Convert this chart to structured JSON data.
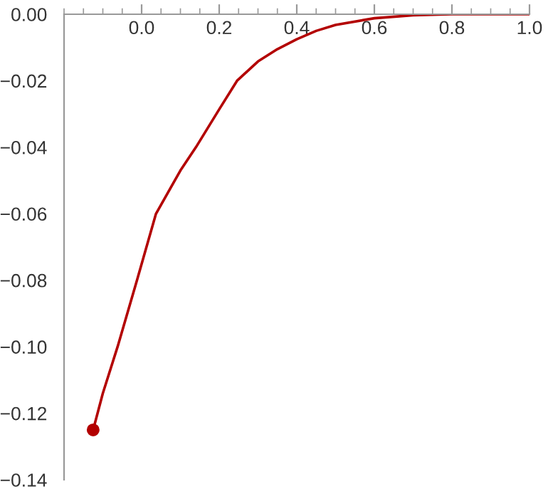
{
  "chart_data": {
    "type": "line",
    "series": [
      {
        "color": "#b30000",
        "x": [
          -0.125,
          -0.1,
          -0.062,
          -0.012,
          0.037,
          0.1,
          0.14,
          0.2,
          0.246,
          0.3,
          0.35,
          0.4,
          0.45,
          0.5,
          0.6,
          0.7,
          0.8,
          0.9,
          1.0
        ],
        "values": [
          -0.125,
          -0.114,
          -0.1,
          -0.08,
          -0.06,
          -0.047,
          -0.04,
          -0.0286,
          -0.02,
          -0.0142,
          -0.0105,
          -0.0075,
          -0.005,
          -0.0032,
          -0.0012,
          -0.0003,
          0,
          0,
          0
        ]
      },
      {
        "type": "scatter",
        "color": "#b30000",
        "marker": "circle",
        "x": [
          -0.125
        ],
        "values": [
          -0.125
        ]
      }
    ],
    "xlim": [
      -0.2,
      1.0
    ],
    "ylim": [
      -0.14,
      0
    ],
    "xticks": [
      {
        "value": 0,
        "label": "0.0"
      },
      {
        "value": 0.2,
        "label": "0.2"
      },
      {
        "value": 0.4,
        "label": "0.4"
      },
      {
        "value": 0.6,
        "label": "0.6"
      },
      {
        "value": 0.8,
        "label": "0.8"
      },
      {
        "value": 1.0,
        "label": "1.0"
      }
    ],
    "yticks": [
      {
        "value": 0,
        "label": "0.00"
      },
      {
        "value": -0.02,
        "label": "−0.02"
      },
      {
        "value": -0.04,
        "label": "−0.04"
      },
      {
        "value": -0.06,
        "label": "−0.06"
      },
      {
        "value": -0.08,
        "label": "−0.08"
      },
      {
        "value": -0.1,
        "label": "−0.10"
      },
      {
        "value": -0.12,
        "label": "−0.12"
      },
      {
        "value": -0.14,
        "label": "−0.14"
      }
    ],
    "grid": false
  }
}
